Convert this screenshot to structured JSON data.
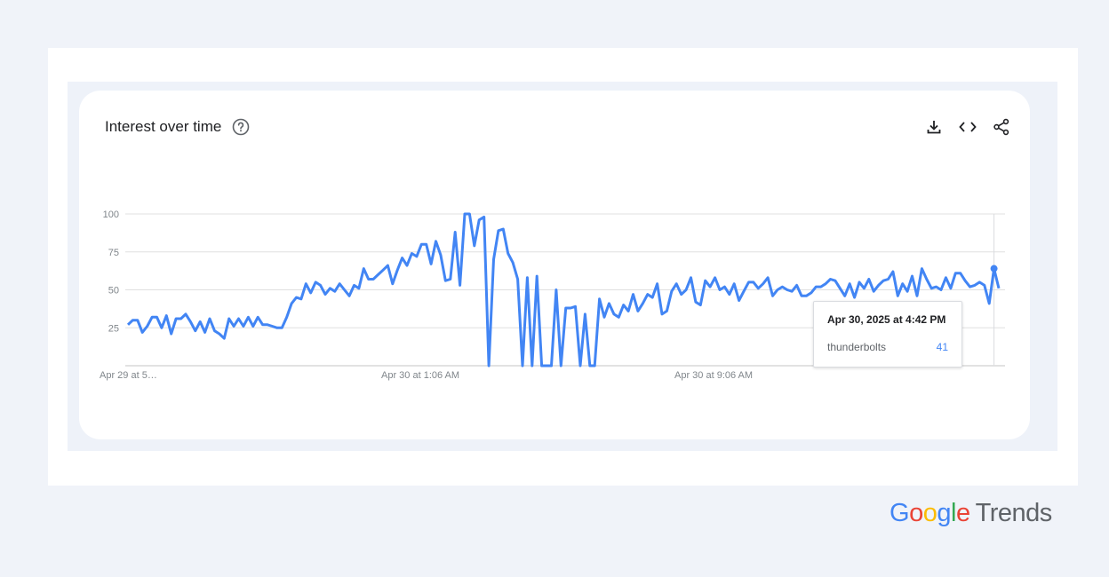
{
  "card": {
    "title": "Interest over time"
  },
  "icons": {
    "help": "help-circle-icon",
    "download": "download-icon",
    "embed": "code-icon",
    "share": "share-icon"
  },
  "chart_data": {
    "type": "line",
    "series": [
      {
        "name": "thunderbolts",
        "color": "#4285f4",
        "values": [
          27,
          30,
          30,
          22,
          26,
          32,
          32,
          25,
          33,
          21,
          31,
          31,
          34,
          29,
          23,
          29,
          22,
          31,
          23,
          21,
          18,
          31,
          26,
          31,
          26,
          32,
          26,
          32,
          27,
          27,
          26,
          25,
          25,
          32,
          41,
          45,
          44,
          54,
          48,
          55,
          53,
          47,
          51,
          49,
          54,
          50,
          46,
          53,
          51,
          64,
          57,
          57,
          60,
          63,
          66,
          54,
          63,
          71,
          66,
          74,
          72,
          80,
          80,
          67,
          82,
          73,
          56,
          57,
          88,
          53,
          100,
          100,
          79,
          96,
          98,
          0,
          70,
          89,
          90,
          74,
          68,
          57,
          0,
          58,
          0,
          59,
          0,
          0,
          0,
          50,
          0,
          38,
          38,
          39,
          0,
          34,
          0,
          0,
          44,
          32,
          41,
          34,
          32,
          40,
          36,
          47,
          36,
          41,
          47,
          45,
          54,
          34,
          36,
          49,
          54,
          47,
          50,
          58,
          42,
          40,
          56,
          52,
          58,
          50,
          52,
          47,
          54,
          43,
          49,
          55,
          55,
          51,
          54,
          58,
          46,
          50,
          52,
          50,
          49,
          53,
          46,
          46,
          48,
          52,
          52,
          54,
          57,
          56,
          51,
          46,
          54,
          45,
          55,
          51,
          57,
          49,
          53,
          56,
          57,
          62,
          46,
          54,
          49,
          59,
          46,
          64,
          57,
          51,
          52,
          50,
          58,
          51,
          61,
          61,
          56,
          52,
          53,
          55,
          53,
          41,
          64,
          51
        ]
      }
    ],
    "ylim": [
      0,
      100
    ],
    "y_ticks": [
      100,
      75,
      50,
      25
    ],
    "x_tick_labels": [
      "Apr 29 at 5…",
      "Apr 30 at 1:06 AM",
      "Apr 30 at 9:06 AM"
    ],
    "grid": true,
    "legend": "none"
  },
  "tooltip": {
    "date": "Apr 30, 2025 at 4:42 PM",
    "term": "thunderbolts",
    "value": "41"
  },
  "brand": {
    "google": "Google",
    "trends": "Trends",
    "letter_colors": [
      "#4285f4",
      "#ea4335",
      "#fbbc05",
      "#4285f4",
      "#34a853",
      "#ea4335"
    ]
  }
}
